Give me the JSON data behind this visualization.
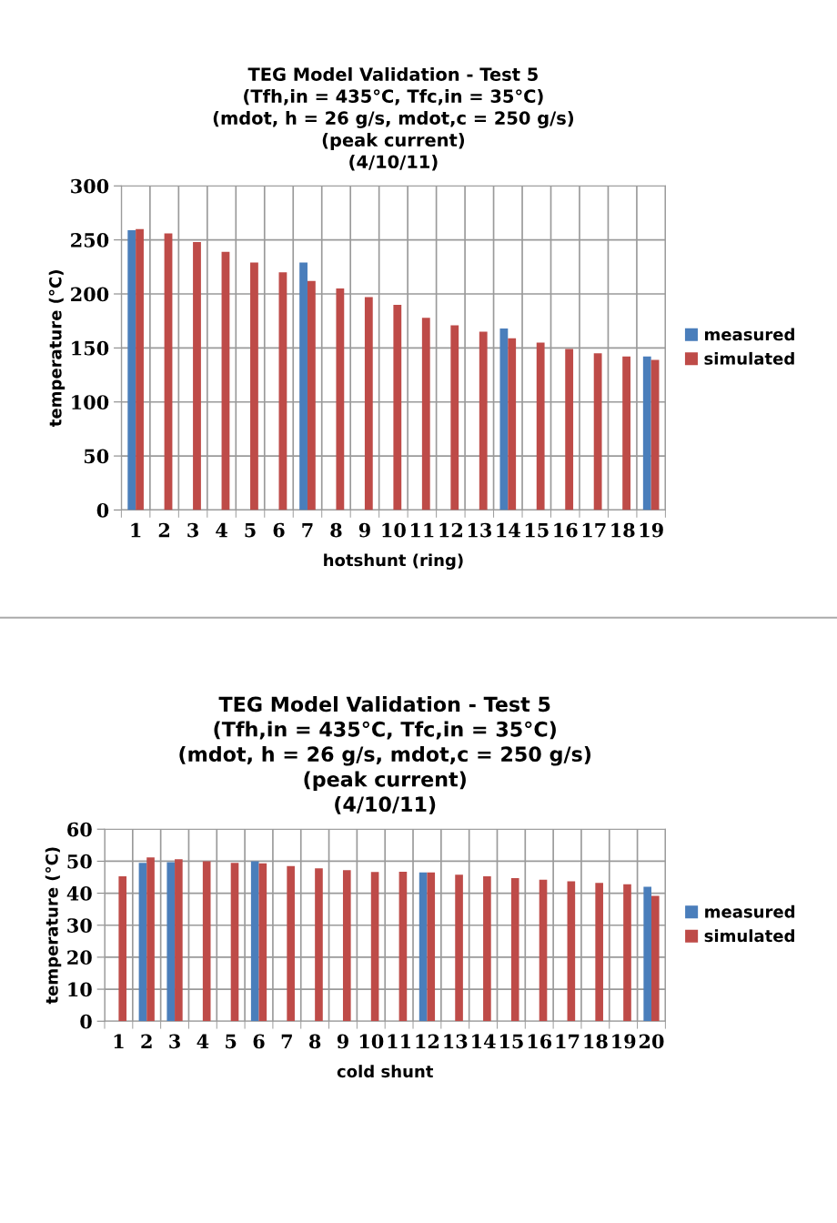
{
  "chart_data": [
    {
      "type": "bar",
      "title": "TEG Model Validation - Test 5\n(Tfh,in = 435°C, Tfc,in = 35°C)\n(mdot, h = 26 g/s, mdot,c = 250 g/s)\n(peak current)\n(4/10/11)",
      "xlabel": "hotshunt (ring)",
      "ylabel": "temperature (°C)",
      "categories": [
        "1",
        "2",
        "3",
        "4",
        "5",
        "6",
        "7",
        "8",
        "9",
        "10",
        "11",
        "12",
        "13",
        "14",
        "15",
        "16",
        "17",
        "18",
        "19"
      ],
      "series": [
        {
          "name": "measured",
          "color": "#4a7ebb",
          "values": [
            259,
            null,
            null,
            null,
            null,
            null,
            229,
            null,
            null,
            null,
            null,
            null,
            null,
            168,
            null,
            null,
            null,
            null,
            142
          ]
        },
        {
          "name": "simulated",
          "color": "#be4b48",
          "values": [
            260,
            256,
            248,
            239,
            229,
            220,
            212,
            205,
            197,
            190,
            178,
            171,
            165,
            159,
            155,
            149,
            145,
            142,
            139
          ]
        }
      ],
      "ylim": [
        0,
        300
      ],
      "yticks": [
        0,
        50,
        100,
        150,
        200,
        250,
        300
      ],
      "grid": true,
      "legend": "right"
    },
    {
      "type": "bar",
      "title": "TEG Model Validation - Test 5\n(Tfh,in = 435°C, Tfc,in = 35°C)\n(mdot, h = 26 g/s, mdot,c = 250 g/s)\n(peak current)\n(4/10/11)",
      "xlabel": "cold shunt",
      "ylabel": "temperature (°C)",
      "categories": [
        "1",
        "2",
        "3",
        "4",
        "5",
        "6",
        "7",
        "8",
        "9",
        "10",
        "11",
        "12",
        "13",
        "14",
        "15",
        "16",
        "17",
        "18",
        "19",
        "20"
      ],
      "series": [
        {
          "name": "measured",
          "color": "#4a7ebb",
          "values": [
            null,
            49.5,
            49.7,
            null,
            null,
            50,
            null,
            null,
            null,
            null,
            null,
            46.5,
            null,
            null,
            null,
            null,
            null,
            null,
            null,
            42
          ]
        },
        {
          "name": "simulated",
          "color": "#be4b48",
          "values": [
            45.3,
            51.2,
            50.6,
            50,
            49.5,
            49.3,
            48.5,
            47.8,
            47.2,
            46.6,
            46.7,
            46.5,
            45.8,
            45.3,
            44.7,
            44.2,
            43.7,
            43.2,
            42.8,
            39.2
          ]
        }
      ],
      "ylim": [
        0,
        60
      ],
      "yticks": [
        0,
        10,
        20,
        30,
        40,
        50,
        60
      ],
      "grid": true,
      "legend": "right"
    }
  ]
}
